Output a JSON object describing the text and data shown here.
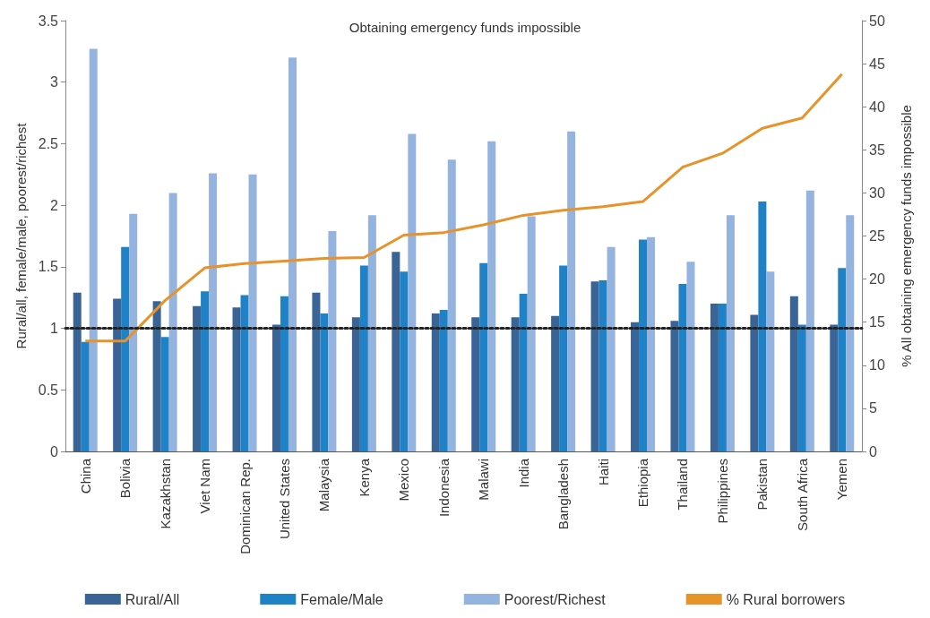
{
  "chart_data": {
    "type": "bar",
    "title": "Obtaining emergency funds impossible",
    "ylabel": "Rural/all, female/male, poorest/richest",
    "y2label": "% All obtaining emergency funds impossible",
    "categories": [
      "China",
      "Bolivia",
      "Kazakhstan",
      "Viet Nam",
      "Dominican Rep.",
      "United States",
      "Malaysia",
      "Kenya",
      "Mexico",
      "Indonesia",
      "Malawi",
      "India",
      "Bangladesh",
      "Haiti",
      "Ethiopia",
      "Thailand",
      "Philippines",
      "Pakistan",
      "South Africa",
      "Yemen"
    ],
    "series": [
      {
        "name": "Rural/All",
        "color": "#3a6396",
        "values": [
          1.29,
          1.24,
          1.22,
          1.18,
          1.17,
          1.03,
          1.29,
          1.09,
          1.62,
          1.12,
          1.09,
          1.09,
          1.1,
          1.38,
          1.05,
          1.06,
          1.2,
          1.11,
          1.26,
          1.03
        ]
      },
      {
        "name": "Female/Male",
        "color": "#1f82c6",
        "values": [
          0.89,
          1.66,
          0.93,
          1.3,
          1.27,
          1.26,
          1.12,
          1.51,
          1.46,
          1.15,
          1.53,
          1.28,
          1.51,
          1.39,
          1.72,
          1.36,
          1.2,
          2.03,
          1.03,
          1.49
        ]
      },
      {
        "name": "Poorest/Richest",
        "color": "#94b4df",
        "values": [
          3.27,
          1.93,
          2.1,
          2.26,
          2.25,
          3.2,
          1.79,
          1.92,
          2.58,
          2.37,
          2.52,
          1.91,
          2.6,
          1.66,
          1.74,
          1.54,
          1.92,
          1.46,
          2.12,
          1.92
        ]
      },
      {
        "name": "% Rural borrowers",
        "type": "line",
        "axis": "y2",
        "color": "#e8922a",
        "values": [
          12.8,
          12.8,
          17.5,
          21.3,
          21.8,
          22.1,
          22.4,
          22.5,
          25.1,
          25.4,
          26.3,
          27.4,
          28.0,
          28.4,
          29.0,
          33.0,
          34.6,
          37.5,
          38.7,
          43.8
        ]
      }
    ],
    "ylim": [
      0,
      3.5
    ],
    "yticks": [
      0,
      0.5,
      1,
      1.5,
      2,
      2.5,
      3,
      3.5
    ],
    "y2lim": [
      0,
      50
    ],
    "y2ticks": [
      0,
      5,
      10,
      15,
      20,
      25,
      30,
      35,
      40,
      45,
      50
    ],
    "ref_lines": [
      {
        "axis": "y",
        "value": 1,
        "color": "#222222",
        "line_style": "dotted"
      }
    ],
    "legend": "bottom",
    "grid": false,
    "marker": "none"
  }
}
